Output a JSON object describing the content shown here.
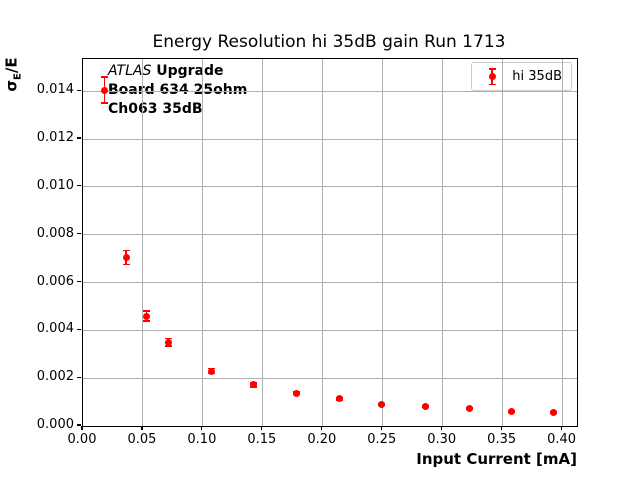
{
  "colors": {
    "marker": "#ff0000",
    "grid": "#b0b0b0",
    "spine": "#000000",
    "legend_border": "#cccccc",
    "text": "#000000"
  },
  "annotation": {
    "line1_italic": "ATLAS",
    "line1_bold": " Upgrade",
    "line2": "Board 634 25ohm",
    "line3": "Ch063 35dB"
  },
  "legend": {
    "label": "hi 35dB",
    "position": "upper right"
  },
  "ylabel_parts": {
    "sigma": "σ",
    "sub": "E",
    "rest": "/E"
  },
  "chart_data": {
    "type": "scatter",
    "title": "Energy Resolution hi 35dB gain Run 1713",
    "xlabel": "Input Current [mA]",
    "ylabel": "σ_E/E",
    "grid": true,
    "legend_position": "upper right",
    "xlim": [
      0,
      0.412
    ],
    "ylim": [
      0,
      0.01535
    ],
    "xticks": [
      0.0,
      0.05,
      0.1,
      0.15,
      0.2,
      0.25,
      0.3,
      0.35,
      0.4
    ],
    "xtick_labels": [
      "0.00",
      "0.05",
      "0.10",
      "0.15",
      "0.20",
      "0.25",
      "0.30",
      "0.35",
      "0.40"
    ],
    "yticks": [
      0.0,
      0.002,
      0.004,
      0.006,
      0.008,
      0.01,
      0.012,
      0.014
    ],
    "ytick_labels": [
      "0.000",
      "0.002",
      "0.004",
      "0.006",
      "0.008",
      "0.010",
      "0.012",
      "0.014"
    ],
    "series": [
      {
        "name": "hi 35dB",
        "color": "#ff0000",
        "marker": "o",
        "x": [
          0.018,
          0.036,
          0.053,
          0.071,
          0.107,
          0.142,
          0.178,
          0.214,
          0.249,
          0.286,
          0.322,
          0.357,
          0.392
        ],
        "y": [
          0.01405,
          0.00705,
          0.0046,
          0.0035,
          0.0023,
          0.00172,
          0.00137,
          0.00113,
          0.00091,
          0.00082,
          0.00074,
          0.00062,
          0.00057
        ],
        "yerr": [
          0.00055,
          0.0003,
          0.0002,
          0.00015,
          0.0001,
          8e-05,
          6e-05,
          5e-05,
          4e-05,
          4e-05,
          3e-05,
          3e-05,
          3e-05
        ]
      }
    ]
  }
}
